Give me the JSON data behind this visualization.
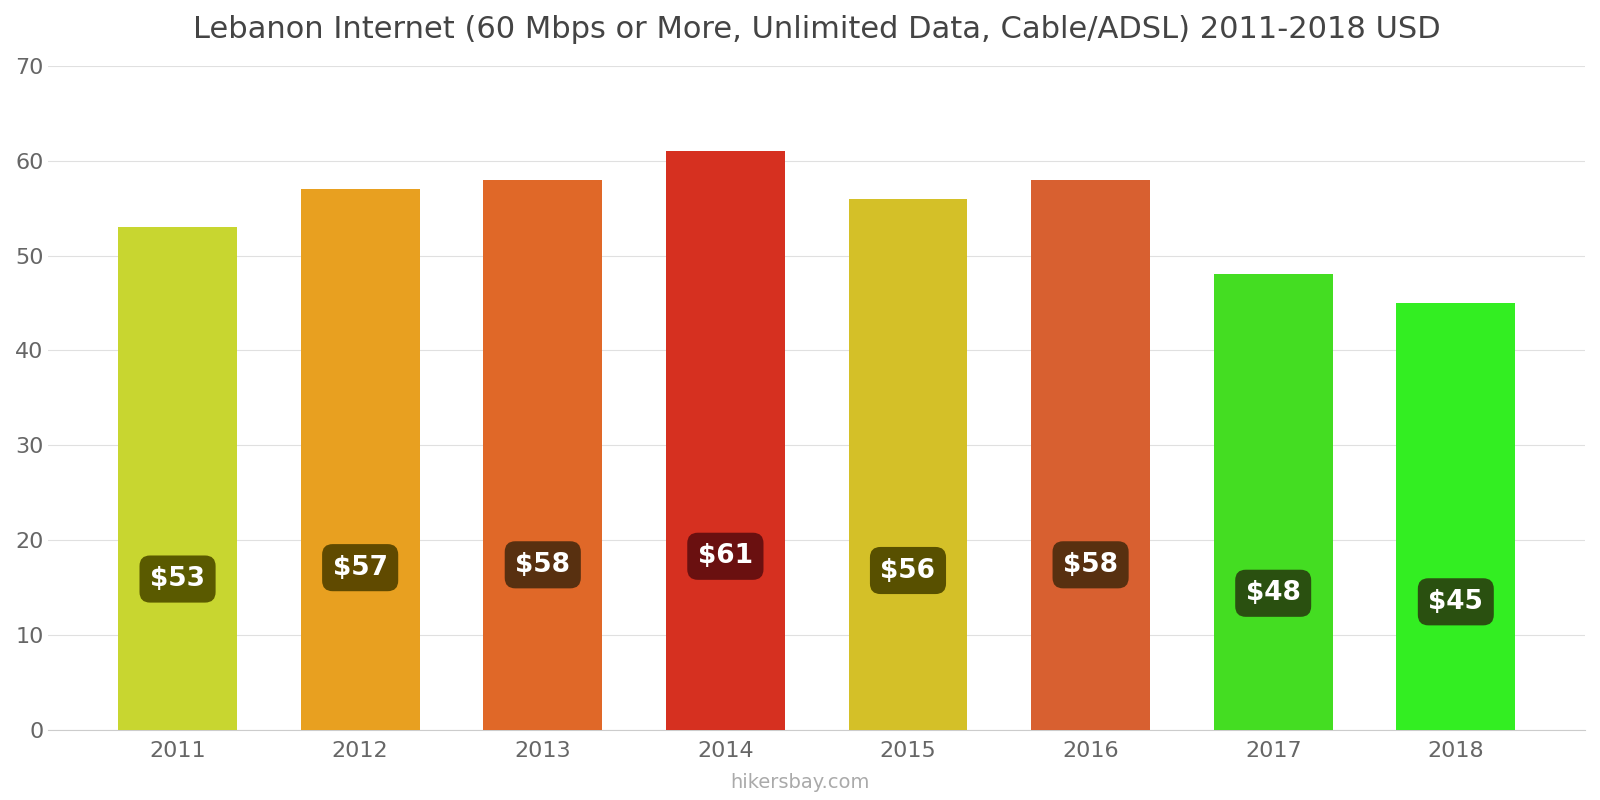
{
  "title": "Lebanon Internet (60 Mbps or More, Unlimited Data, Cable/ADSL) 2011-2018 USD",
  "years": [
    2011,
    2012,
    2013,
    2014,
    2015,
    2016,
    2017,
    2018
  ],
  "values": [
    53,
    57,
    58,
    61,
    56,
    58,
    48,
    45
  ],
  "bar_colors": [
    "#c8d630",
    "#e8a020",
    "#e06828",
    "#d63020",
    "#d4c028",
    "#d86030",
    "#44dd22",
    "#33ee22"
  ],
  "label_bg_colors": [
    "#5a5a00",
    "#604a00",
    "#583010",
    "#6a1010",
    "#585000",
    "#583010",
    "#2a5010",
    "#2a5010"
  ],
  "ylim": [
    0,
    70
  ],
  "yticks": [
    0,
    10,
    20,
    30,
    40,
    50,
    60,
    70
  ],
  "footer": "hikersbay.com",
  "title_fontsize": 22,
  "tick_fontsize": 16,
  "label_fontsize": 19,
  "footer_fontsize": 14,
  "bar_width": 0.65
}
